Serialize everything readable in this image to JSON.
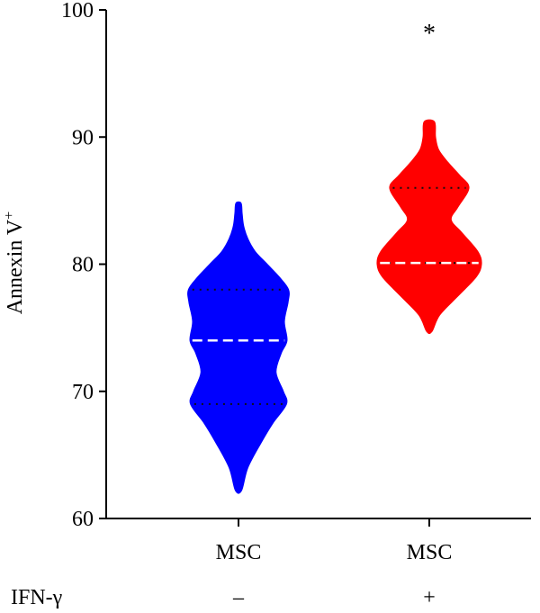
{
  "chart_data": {
    "type": "violin",
    "ylabel": "Annexin V",
    "ylabel_sup": "+",
    "ylim": [
      60,
      100
    ],
    "yticks": [
      60,
      70,
      80,
      90,
      100
    ],
    "categories": [
      "MSC",
      "MSC"
    ],
    "row_label": "IFN-γ",
    "row_values": [
      "–",
      "+"
    ],
    "series": [
      {
        "color": "#0000ff",
        "min": 62.2,
        "max": 84.8,
        "median": 74.0,
        "q1": 69.0,
        "q3": 78.0,
        "profile": [
          [
            62.2,
            0.06
          ],
          [
            64,
            0.18
          ],
          [
            66,
            0.44
          ],
          [
            67.5,
            0.66
          ],
          [
            69,
            0.92
          ],
          [
            70,
            0.86
          ],
          [
            71.5,
            0.72
          ],
          [
            73,
            0.82
          ],
          [
            74,
            0.93
          ],
          [
            75.5,
            0.88
          ],
          [
            77,
            0.95
          ],
          [
            78,
            0.96
          ],
          [
            79,
            0.78
          ],
          [
            80,
            0.55
          ],
          [
            81,
            0.32
          ],
          [
            82,
            0.18
          ],
          [
            83,
            0.1
          ],
          [
            84,
            0.07
          ],
          [
            84.8,
            0.05
          ]
        ]
      },
      {
        "color": "#ff0000",
        "min": 74.7,
        "max": 91.2,
        "median": 80.1,
        "q1": 80.1,
        "q3": 86.0,
        "profile": [
          [
            74.7,
            0.05
          ],
          [
            76,
            0.2
          ],
          [
            77.5,
            0.55
          ],
          [
            79,
            0.9
          ],
          [
            80,
            1.0
          ],
          [
            81,
            0.93
          ],
          [
            82.5,
            0.62
          ],
          [
            83.5,
            0.42
          ],
          [
            84.5,
            0.55
          ],
          [
            86,
            0.76
          ],
          [
            87,
            0.58
          ],
          [
            88,
            0.36
          ],
          [
            89,
            0.18
          ],
          [
            90,
            0.12
          ],
          [
            91.2,
            0.1
          ]
        ]
      }
    ],
    "annotations": [
      {
        "text": "*",
        "category_index": 1,
        "y": 98.5
      }
    ]
  }
}
